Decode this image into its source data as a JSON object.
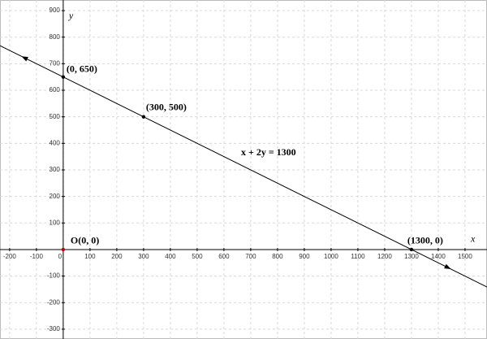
{
  "chart_data": {
    "type": "line",
    "xlim": [
      -236,
      1582
    ],
    "ylim": [
      -337,
      940
    ],
    "xticks": [
      -200,
      -100,
      0,
      100,
      200,
      300,
      400,
      500,
      600,
      700,
      800,
      900,
      1000,
      1100,
      1200,
      1300,
      1400,
      1500
    ],
    "yticks": [
      -300,
      -200,
      -100,
      100,
      200,
      300,
      400,
      500,
      600,
      700,
      800,
      900
    ],
    "grid": true,
    "x_label": "x",
    "y_label": "y",
    "annotation": "x + 2y = 1300",
    "series": [
      {
        "color": "#000000",
        "x": [
          -236,
          1582
        ],
        "values": [
          768,
          -141
        ]
      }
    ],
    "points": [
      {
        "x": 0,
        "y": 650,
        "label": "(0, 650)",
        "color": "#000000"
      },
      {
        "x": 300,
        "y": 500,
        "label": "(300, 500)",
        "color": "#000000"
      },
      {
        "x": 1300,
        "y": 0,
        "label": "(1300, 0)",
        "color": "#000000"
      },
      {
        "x": 0,
        "y": 0,
        "label": "O(0, 0)",
        "color": "#cc0000"
      }
    ]
  }
}
